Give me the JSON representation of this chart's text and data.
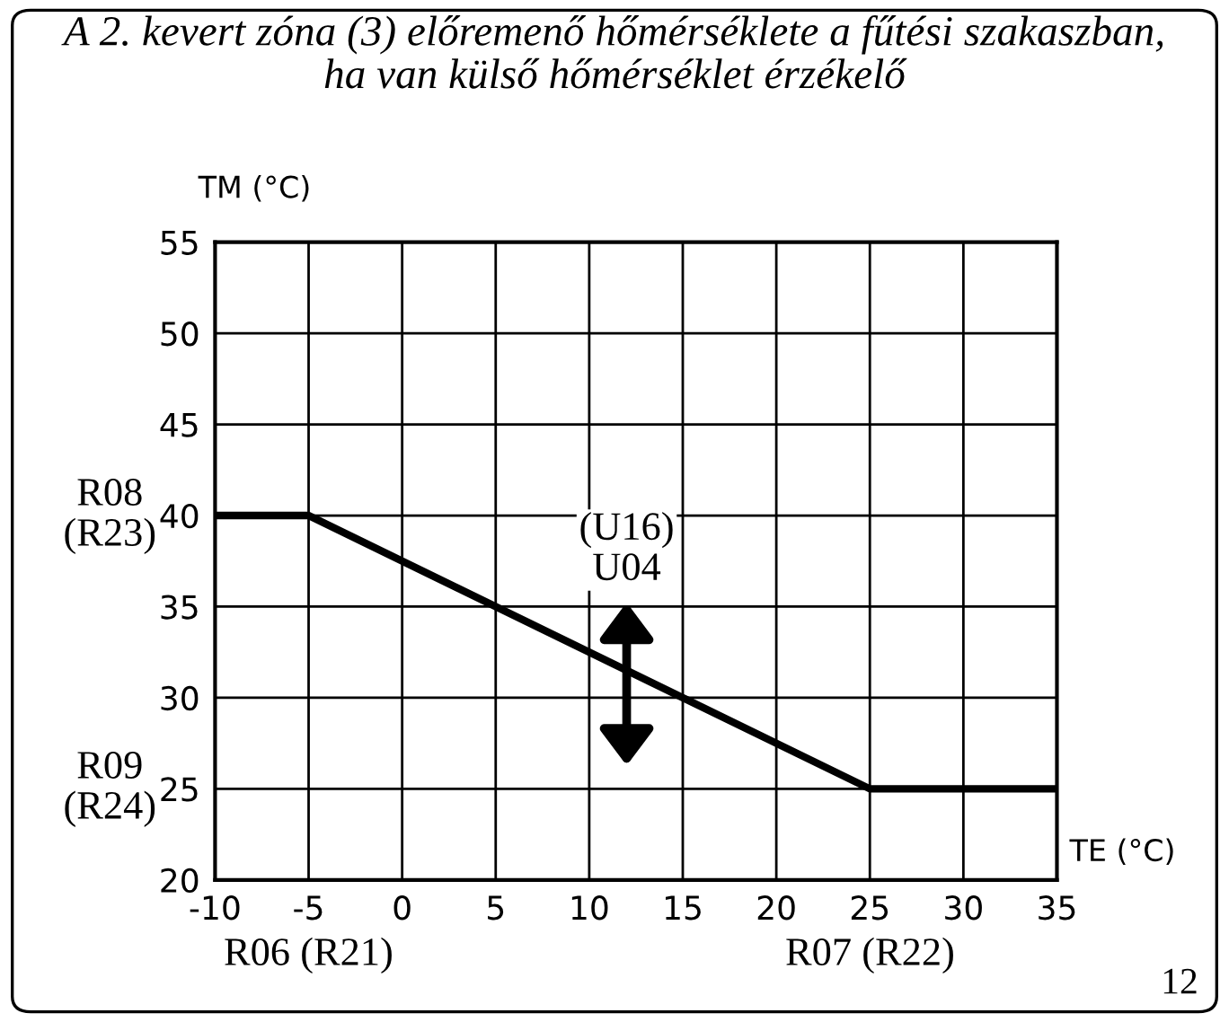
{
  "chart_data": {
    "type": "line",
    "title": "A 2. kevert zóna (3) előremenő hőmérséklete a fűtési szakaszban,\nha van külső hőmérséklet érzékelő",
    "xlabel": "TE (°C)",
    "ylabel": "TM (°C)",
    "x": [
      -10,
      -5,
      25,
      35
    ],
    "series": [
      {
        "color": "#000000",
        "values": [
          40,
          40,
          25,
          25
        ]
      }
    ],
    "xlim": [
      -10,
      35
    ],
    "xticks": [
      -10,
      -5,
      0,
      5,
      10,
      15,
      20,
      25,
      30,
      35
    ],
    "ylim": [
      20,
      55
    ],
    "yticks": [
      20,
      25,
      30,
      35,
      40,
      45,
      50,
      55
    ],
    "grid": true,
    "marker": "none",
    "line_style": "solid",
    "annotations": [
      "R08\n(R23)",
      "R09\n(R24)",
      "R06 (R21)",
      "R07 (R22)",
      {
        "text": "(U16)\nU04",
        "x": 12,
        "y": 31
      },
      "12"
    ]
  }
}
